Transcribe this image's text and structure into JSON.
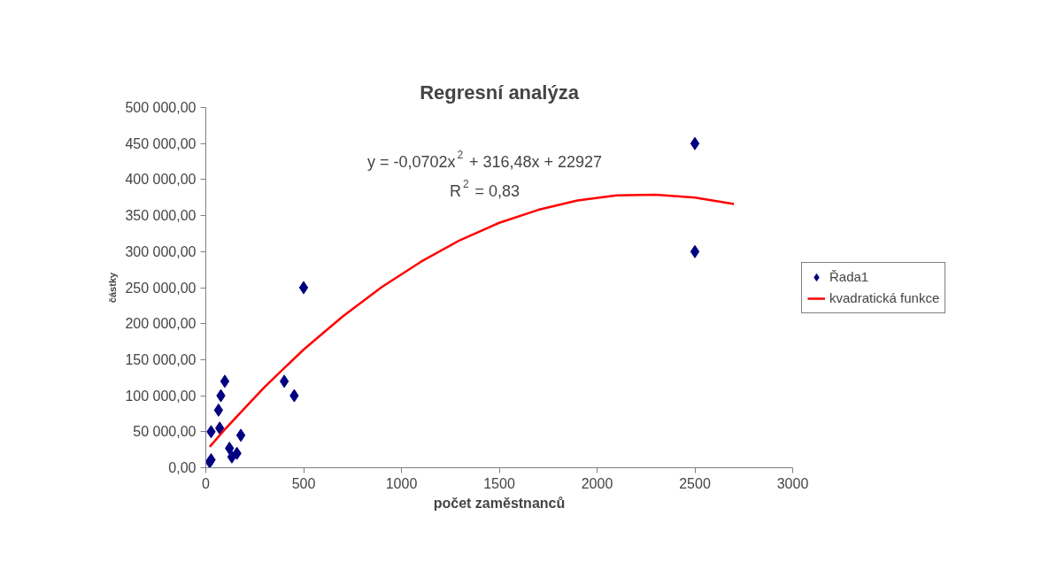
{
  "chart_data": {
    "type": "scatter",
    "title": "Regresní analýza",
    "xlabel": "počet zaměstnanců",
    "ylabel": "částky",
    "annotations": [
      "y = -0,0702x$^{2}$ + 316,48x + 22927",
      "R$^{2}$ = 0,83"
    ],
    "xlim": [
      0,
      3000
    ],
    "xticks": [
      0,
      500,
      1000,
      1500,
      2000,
      2500,
      3000
    ],
    "ylim": [
      0,
      500000
    ],
    "yticks": [
      {
        "value": 0,
        "label": "0,00"
      },
      {
        "value": 50000,
        "label": "50 000,00"
      },
      {
        "value": 100000,
        "label": "100 000,00"
      },
      {
        "value": 150000,
        "label": "150 000,00"
      },
      {
        "value": 200000,
        "label": "200 000,00"
      },
      {
        "value": 250000,
        "label": "250 000,00"
      },
      {
        "value": 300000,
        "label": "300 000,00"
      },
      {
        "value": 350000,
        "label": "350 000,00"
      },
      {
        "value": 400000,
        "label": "400 000,00"
      },
      {
        "value": 450000,
        "label": "450 000,00"
      },
      {
        "value": 500000,
        "label": "500 000,00"
      }
    ],
    "grid": false,
    "legend": "right",
    "series": [
      {
        "name": "Řada1",
        "marker": "diamond",
        "color": "#000080",
        "x": [
          20,
          27,
          27,
          97,
          77,
          65,
          71,
          179,
          121,
          133,
          159,
          401,
          452,
          500,
          2500,
          2500
        ],
        "values": [
          8000,
          11000,
          50000,
          120000,
          100000,
          80000,
          55000,
          45000,
          27000,
          15000,
          20000,
          120000,
          100000,
          250000,
          450000,
          300000
        ]
      },
      {
        "name": "kvadratická funkce",
        "type": "line",
        "marker": "none",
        "line_style": "solid",
        "color": "#ff0000",
        "x": [
          20,
          100,
          200,
          300,
          400,
          500,
          700,
          900,
          1100,
          1300,
          1500,
          1700,
          1900,
          2100,
          2300,
          2500,
          2700
        ],
        "values": [
          29000,
          54000,
          83000,
          112000,
          138000,
          164000,
          210000,
          251000,
          286000,
          316000,
          340000,
          358000,
          371000,
          378000,
          379000,
          375000,
          366000
        ]
      }
    ]
  }
}
